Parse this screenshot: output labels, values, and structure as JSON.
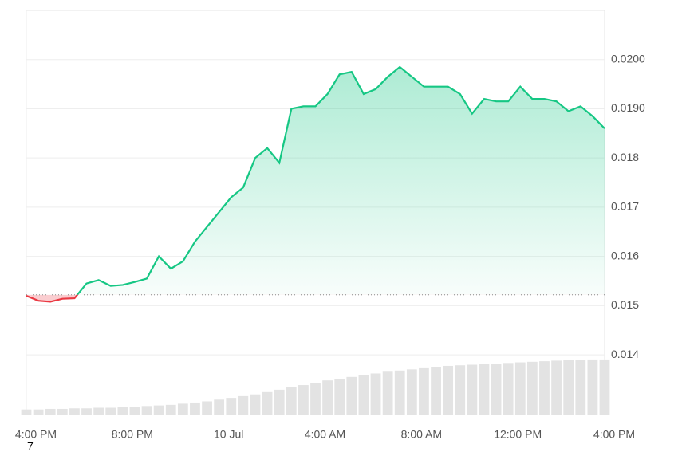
{
  "chart_data": {
    "type": "line",
    "x": [
      0,
      0.5,
      1,
      1.5,
      2,
      2.5,
      3,
      3.5,
      4,
      4.5,
      5,
      5.5,
      6,
      6.5,
      7,
      7.5,
      8,
      8.5,
      9,
      9.5,
      10,
      10.5,
      11,
      11.5,
      12,
      12.5,
      13,
      13.5,
      14,
      14.5,
      15,
      15.5,
      16,
      16.5,
      17,
      17.5,
      18,
      18.5,
      19,
      19.5,
      20,
      20.5,
      21,
      21.5,
      22,
      22.5,
      23,
      23.5,
      24
    ],
    "series": [
      {
        "color": "#16c784",
        "down_color": "#ea3943",
        "values": [
          0.0152,
          0.0151,
          0.01508,
          0.01514,
          0.01515,
          0.01545,
          0.01552,
          0.0154,
          0.01542,
          0.01548,
          0.01555,
          0.016,
          0.01575,
          0.0159,
          0.0163,
          0.0166,
          0.0169,
          0.0172,
          0.0174,
          0.018,
          0.0182,
          0.0179,
          0.019,
          0.01905,
          0.01905,
          0.0193,
          0.0197,
          0.01975,
          0.0193,
          0.0194,
          0.01965,
          0.01985,
          0.01965,
          0.01945,
          0.01945,
          0.01945,
          0.0193,
          0.0189,
          0.0192,
          0.01915,
          0.01915,
          0.01945,
          0.0192,
          0.0192,
          0.01915,
          0.01895,
          0.01905,
          0.01885,
          0.0186
        ]
      }
    ],
    "volume": {
      "color": "#e3e3e3",
      "values": [
        10,
        10,
        11,
        11,
        12,
        12,
        13,
        13,
        14,
        15,
        16,
        17,
        18,
        20,
        22,
        24,
        27,
        30,
        33,
        36,
        40,
        44,
        48,
        52,
        56,
        60,
        63,
        66,
        69,
        72,
        75,
        77,
        79,
        81,
        83,
        85,
        86,
        87,
        88,
        89,
        90,
        91,
        92,
        93,
        94,
        95,
        95,
        96,
        96
      ]
    },
    "baseline": 0.01522,
    "xlim": [
      0,
      24
    ],
    "xticks": [
      {
        "value": 0,
        "label": "4:00 PM"
      },
      {
        "value": 4,
        "label": "8:00 PM"
      },
      {
        "value": 8,
        "label": "10 Jul"
      },
      {
        "value": 12,
        "label": "4:00 AM"
      },
      {
        "value": 16,
        "label": "8:00 AM"
      },
      {
        "value": 20,
        "label": "12:00 PM"
      },
      {
        "value": 24,
        "label": "4:00 PM"
      }
    ],
    "ylim": [
      0.01277,
      0.021
    ],
    "yticks": [
      0.014,
      0.015,
      0.016,
      0.017,
      0.018,
      {
        "value": 0.019,
        "label": "0.0190"
      },
      {
        "value": 0.02,
        "label": "0.0200"
      }
    ],
    "grid": true,
    "annotations": [
      "7"
    ]
  }
}
